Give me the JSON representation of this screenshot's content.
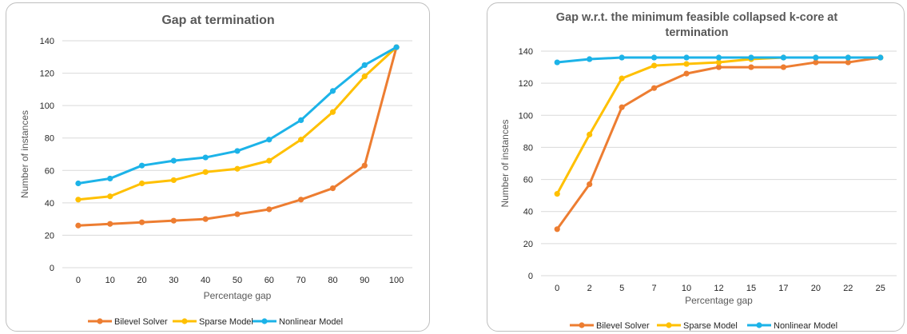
{
  "chart_data": [
    {
      "type": "line",
      "title": "Gap at termination",
      "xlabel": "Percentage gap",
      "ylabel": "Number of instances",
      "categories": [
        "0",
        "10",
        "20",
        "30",
        "40",
        "50",
        "60",
        "70",
        "80",
        "90",
        "100"
      ],
      "ylim": [
        0,
        140
      ],
      "yticks": [
        "0",
        "20",
        "40",
        "60",
        "80",
        "100",
        "120",
        "140"
      ],
      "grid": true,
      "legend": "bottom",
      "series": [
        {
          "name": "Bilevel Solver",
          "color": "#ED7D31",
          "values": [
            26,
            27,
            28,
            29,
            30,
            33,
            36,
            42,
            49,
            63,
            136
          ]
        },
        {
          "name": "Sparse Model",
          "color": "#FFC000",
          "values": [
            42,
            44,
            52,
            54,
            59,
            61,
            66,
            79,
            96,
            118,
            136
          ]
        },
        {
          "name": "Nonlinear Model",
          "color": "#1CB3E8",
          "values": [
            52,
            55,
            63,
            66,
            68,
            72,
            79,
            91,
            109,
            125,
            136
          ]
        }
      ]
    },
    {
      "type": "line",
      "title_lines": [
        "Gap w.r.t. the minimum feasible collapsed k-core at",
        "termination"
      ],
      "xlabel": "Percentage gap",
      "ylabel": "Number of instances",
      "categories": [
        "0",
        "2",
        "5",
        "7",
        "10",
        "12",
        "15",
        "17",
        "20",
        "22",
        "25"
      ],
      "ylim": [
        0,
        140
      ],
      "yticks": [
        "0",
        "20",
        "40",
        "60",
        "80",
        "100",
        "120",
        "140"
      ],
      "grid": true,
      "legend": "bottom",
      "series": [
        {
          "name": "Bilevel Solver",
          "color": "#ED7D31",
          "values": [
            29,
            57,
            105,
            117,
            126,
            130,
            130,
            130,
            133,
            133,
            136
          ]
        },
        {
          "name": "Sparse Model",
          "color": "#FFC000",
          "values": [
            51,
            88,
            123,
            131,
            132,
            133,
            135,
            136,
            136,
            136,
            136
          ]
        },
        {
          "name": "Nonlinear Model",
          "color": "#1CB3E8",
          "values": [
            133,
            135,
            136,
            136,
            136,
            136,
            136,
            136,
            136,
            136,
            136
          ]
        }
      ]
    }
  ]
}
